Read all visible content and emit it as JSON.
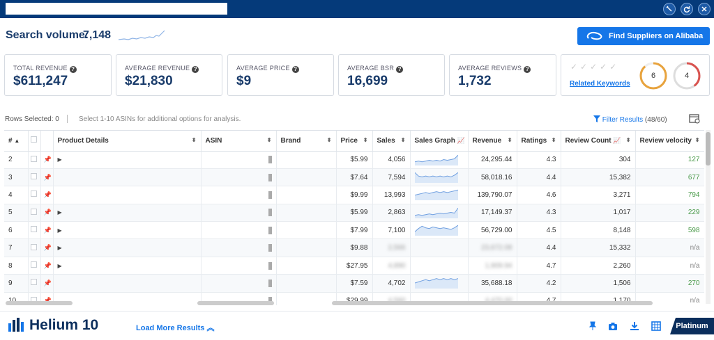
{
  "topbar": {
    "title_value": "",
    "buttons": [
      {
        "name": "pin-window-button",
        "icon": "pin-icon"
      },
      {
        "name": "refresh-button",
        "icon": "refresh-icon"
      },
      {
        "name": "close-button",
        "icon": "close-icon"
      }
    ]
  },
  "search_volume": {
    "label": "Search volume:",
    "value": "7,148"
  },
  "alibaba_button": {
    "label": "Find Suppliers on Alibaba",
    "icon": "alibaba-icon"
  },
  "cards": [
    {
      "label": "TOTAL REVENUE",
      "value": "$611,247"
    },
    {
      "label": "AVERAGE REVENUE",
      "value": "$21,830"
    },
    {
      "label": "AVERAGE PRICE",
      "value": "$9"
    },
    {
      "label": "AVERAGE BSR",
      "value": "16,699"
    },
    {
      "label": "AVERAGE REVIEWS",
      "value": "1,732"
    }
  ],
  "keywords": {
    "link": "Related Keywords",
    "rings": [
      {
        "value": "6",
        "color": "#e8a33d"
      },
      {
        "value": "4",
        "color": "#d9534f"
      }
    ]
  },
  "toolbar": {
    "rows_selected": "Rows Selected: 0",
    "hint": "Select 1-10 ASINs for additional options for analysis.",
    "filter_label": "Filter Results",
    "filter_count": "(48/60)"
  },
  "table": {
    "headers": {
      "num": "#",
      "product": "Product Details",
      "asin": "ASIN",
      "brand": "Brand",
      "price": "Price",
      "sales": "Sales",
      "sales_graph": "Sales Graph",
      "revenue": "Revenue",
      "ratings": "Ratings",
      "review_count": "Review Count",
      "review_velocity": "Review velocity"
    },
    "rows": [
      {
        "num": "2",
        "price": "$5.99",
        "sales": "4,056",
        "revenue": "24,295.44",
        "ratings": "4.3",
        "review_count": "304",
        "velocity": "127",
        "expand": "true",
        "graph": [
          5,
          6,
          5,
          6,
          7,
          6,
          7,
          6,
          8,
          7,
          8,
          9,
          14
        ]
      },
      {
        "num": "3",
        "price": "$7.64",
        "sales": "7,594",
        "revenue": "58,018.16",
        "ratings": "4.4",
        "review_count": "15,382",
        "velocity": "677",
        "expand": "false",
        "graph": [
          12,
          8,
          7,
          8,
          7,
          8,
          7,
          8,
          7,
          8,
          7,
          9,
          12
        ]
      },
      {
        "num": "4",
        "price": "$9.99",
        "sales": "13,993",
        "revenue": "139,790.07",
        "ratings": "4.6",
        "review_count": "3,271",
        "velocity": "794",
        "expand": "false",
        "graph": [
          6,
          7,
          8,
          9,
          8,
          9,
          10,
          9,
          10,
          9,
          10,
          11,
          12
        ]
      },
      {
        "num": "5",
        "price": "$5.99",
        "sales": "2,863",
        "revenue": "17,149.37",
        "ratings": "4.3",
        "review_count": "1,017",
        "velocity": "229",
        "expand": "true",
        "graph": [
          4,
          5,
          4,
          5,
          6,
          5,
          6,
          7,
          6,
          7,
          8,
          7,
          14
        ]
      },
      {
        "num": "6",
        "price": "$7.99",
        "sales": "7,100",
        "revenue": "56,729.00",
        "ratings": "4.5",
        "review_count": "8,148",
        "velocity": "598",
        "expand": "true",
        "graph": [
          5,
          9,
          12,
          10,
          9,
          11,
          10,
          9,
          10,
          9,
          8,
          10,
          13
        ]
      },
      {
        "num": "7",
        "price": "$9.88",
        "sales": "2,566",
        "revenue": "23,672.08",
        "ratings": "4.4",
        "review_count": "15,332",
        "velocity": "n/a",
        "expand": "true",
        "graph": []
      },
      {
        "num": "8",
        "price": "$27.95",
        "sales": "4,890",
        "revenue": "1,909.94",
        "ratings": "4.7",
        "review_count": "2,260",
        "velocity": "n/a",
        "expand": "true",
        "graph": []
      },
      {
        "num": "9",
        "price": "$7.59",
        "sales": "4,702",
        "revenue": "35,688.18",
        "ratings": "4.2",
        "review_count": "1,506",
        "velocity": "270",
        "expand": "false",
        "graph": [
          5,
          6,
          7,
          8,
          7,
          8,
          9,
          8,
          9,
          8,
          9,
          8,
          9
        ]
      },
      {
        "num": "10",
        "price": "$29.99",
        "sales": "4,560",
        "revenue": "4,470.00",
        "ratings": "4.7",
        "review_count": "1,170",
        "velocity": "n/a",
        "expand": "false",
        "graph": []
      }
    ]
  },
  "footer": {
    "logo": "Helium 10",
    "load_more": "Load More Results",
    "plan": "Platinum",
    "icons": [
      "pin-icon",
      "camera-icon",
      "download-icon",
      "table-icon"
    ]
  },
  "colors": {
    "brand": "#053a7a",
    "accent": "#1576e8",
    "velocity": "#4a9a4a"
  }
}
